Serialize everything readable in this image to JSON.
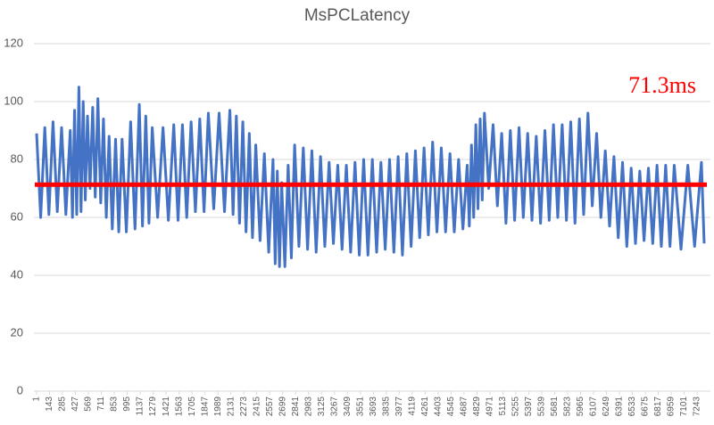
{
  "chart_data": {
    "type": "line",
    "title": "MsPCLatency",
    "x": [
      1,
      46,
      91,
      136,
      181,
      228,
      275,
      322,
      370,
      394,
      417,
      441,
      465,
      488,
      512,
      535,
      559,
      587,
      616,
      644,
      673,
      704,
      734,
      765,
      796,
      831,
      867,
      902,
      938,
      985,
      1032,
      1080,
      1127,
      1162,
      1198,
      1233,
      1269,
      1328,
      1387,
      1446,
      1505,
      1552,
      1600,
      1647,
      1695,
      1742,
      1790,
      1837,
      1884,
      1943,
      2002,
      2061,
      2120,
      2155,
      2191,
      2226,
      2262,
      2297,
      2333,
      2368,
      2404,
      2451,
      2498,
      2546,
      2593,
      2617,
      2640,
      2664,
      2688,
      2723,
      2759,
      2794,
      2830,
      2877,
      2925,
      2972,
      3019,
      3066,
      3114,
      3161,
      3208,
      3255,
      3303,
      3350,
      3397,
      3444,
      3492,
      3539,
      3587,
      3634,
      3682,
      3729,
      3776,
      3823,
      3871,
      3918,
      3965,
      4012,
      4060,
      4107,
      4154,
      4201,
      4249,
      4296,
      4343,
      4390,
      4438,
      4485,
      4533,
      4580,
      4628,
      4675,
      4722,
      4745,
      4769,
      4793,
      4817,
      4840,
      4864,
      4887,
      4911,
      4958,
      5006,
      5053,
      5100,
      5147,
      5195,
      5242,
      5290,
      5337,
      5385,
      5432,
      5479,
      5526,
      5574,
      5621,
      5668,
      5715,
      5763,
      5810,
      5857,
      5904,
      5952,
      5999,
      6046,
      6093,
      6141,
      6188,
      6236,
      6283,
      6331,
      6378,
      6425,
      6472,
      6520,
      6567,
      6614,
      6661,
      6709,
      6756,
      6803,
      6850,
      6898,
      6945,
      6992,
      7066,
      7141,
      7215,
      7290,
      7320
    ],
    "series": [
      {
        "color": "#4472c4",
        "values": [
          89,
          60,
          91,
          61,
          93,
          62,
          91,
          61,
          90,
          60,
          97,
          61,
          105,
          62,
          100,
          66,
          95,
          70,
          98,
          67,
          101,
          65,
          94,
          60,
          88,
          56,
          87,
          55,
          87,
          55,
          93,
          56,
          99,
          57,
          95,
          58,
          91,
          60,
          91,
          59,
          92,
          59,
          92,
          60,
          93,
          62,
          94,
          62,
          96,
          63,
          96,
          62,
          97,
          61,
          95,
          58,
          93,
          55,
          89,
          53,
          85,
          52,
          82,
          48,
          80,
          44,
          76,
          43,
          72,
          43,
          78,
          46,
          85,
          50,
          84,
          49,
          83,
          48,
          81,
          50,
          79,
          51,
          78,
          49,
          78,
          48,
          79,
          47,
          80,
          47,
          80,
          48,
          79,
          49,
          80,
          48,
          81,
          47,
          82,
          50,
          83,
          53,
          84,
          54,
          86,
          55,
          84,
          55,
          82,
          55,
          80,
          56,
          78,
          57,
          85,
          60,
          92,
          63,
          94,
          66,
          96,
          70,
          92,
          64,
          89,
          58,
          90,
          59,
          91,
          60,
          89,
          59,
          88,
          58,
          90,
          59,
          92,
          60,
          92,
          59,
          93,
          58,
          94,
          61,
          96,
          64,
          89,
          60,
          83,
          57,
          81,
          53,
          79,
          50,
          77,
          51,
          76,
          52,
          77,
          51,
          78,
          50,
          78,
          50,
          78,
          49,
          78,
          50,
          79,
          51
        ]
      }
    ],
    "reference_line": {
      "value": 71.3,
      "label": "71.3ms",
      "color": "#ff0000"
    },
    "xlim": [
      1,
      7330
    ],
    "xticks": [
      1,
      143,
      285,
      427,
      569,
      711,
      853,
      995,
      1137,
      1279,
      1421,
      1563,
      1705,
      1847,
      1989,
      2131,
      2273,
      2415,
      2557,
      2699,
      2841,
      2983,
      3125,
      3267,
      3409,
      3551,
      3693,
      3835,
      3977,
      4119,
      4261,
      4403,
      4545,
      4687,
      4829,
      4971,
      5113,
      5255,
      5397,
      5539,
      5681,
      5823,
      5965,
      6107,
      6249,
      6391,
      6533,
      6675,
      6817,
      6959,
      7101,
      7243
    ],
    "ylim": [
      0,
      120
    ],
    "yticks": [
      0,
      20,
      40,
      60,
      80,
      100,
      120
    ],
    "grid": true
  }
}
